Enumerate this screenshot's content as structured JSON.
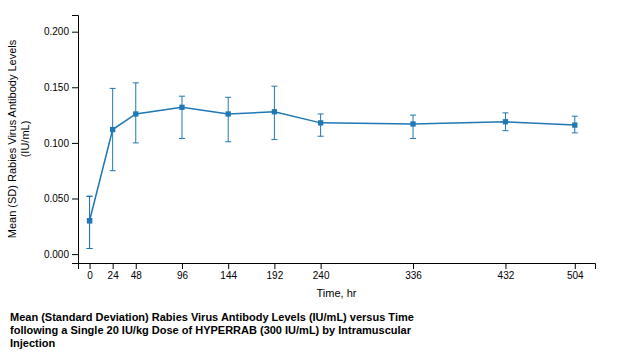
{
  "chart_data": {
    "type": "line",
    "x": [
      0,
      0,
      24,
      48,
      96,
      144,
      192,
      240,
      336,
      432,
      504
    ],
    "values": [
      0.03,
      0.03,
      0.112,
      0.126,
      0.132,
      0.126,
      0.128,
      0.118,
      0.117,
      0.119,
      0.116
    ],
    "error_low": [
      0.025,
      0.025,
      0.037,
      0.026,
      0.028,
      0.025,
      0.025,
      0.012,
      0.013,
      0.008,
      0.007
    ],
    "error_high": [
      0.022,
      0.022,
      0.037,
      0.028,
      0.01,
      0.015,
      0.023,
      0.008,
      0.008,
      0.008,
      0.008
    ],
    "xlabel": "Time, hr",
    "ylabel": "Mean (SD) Rabies Virus Antibody Levels\n(IU/mL)",
    "caption": "Mean (Standard Deviation) Rabies Virus Antibody Levels (IU/mL) versus Time\nfollowing a Single 20 IU/kg Dose of HYPERRAB (300 IU/mL) by Intramuscular\nInjection",
    "xlim": [
      -12,
      525
    ],
    "ylim": [
      -0.008,
      0.215
    ],
    "xticks": [
      0,
      24,
      48,
      96,
      144,
      192,
      240,
      336,
      432,
      504
    ],
    "yticks": [
      {
        "value": 0.0,
        "label": "0.000"
      },
      {
        "value": 0.05,
        "label": "0.050"
      },
      {
        "value": 0.1,
        "label": "0.100"
      },
      {
        "value": 0.15,
        "label": "0.150"
      },
      {
        "value": 0.2,
        "label": "0.200"
      }
    ],
    "marker": "square",
    "line_style": "solid",
    "grid": false
  }
}
